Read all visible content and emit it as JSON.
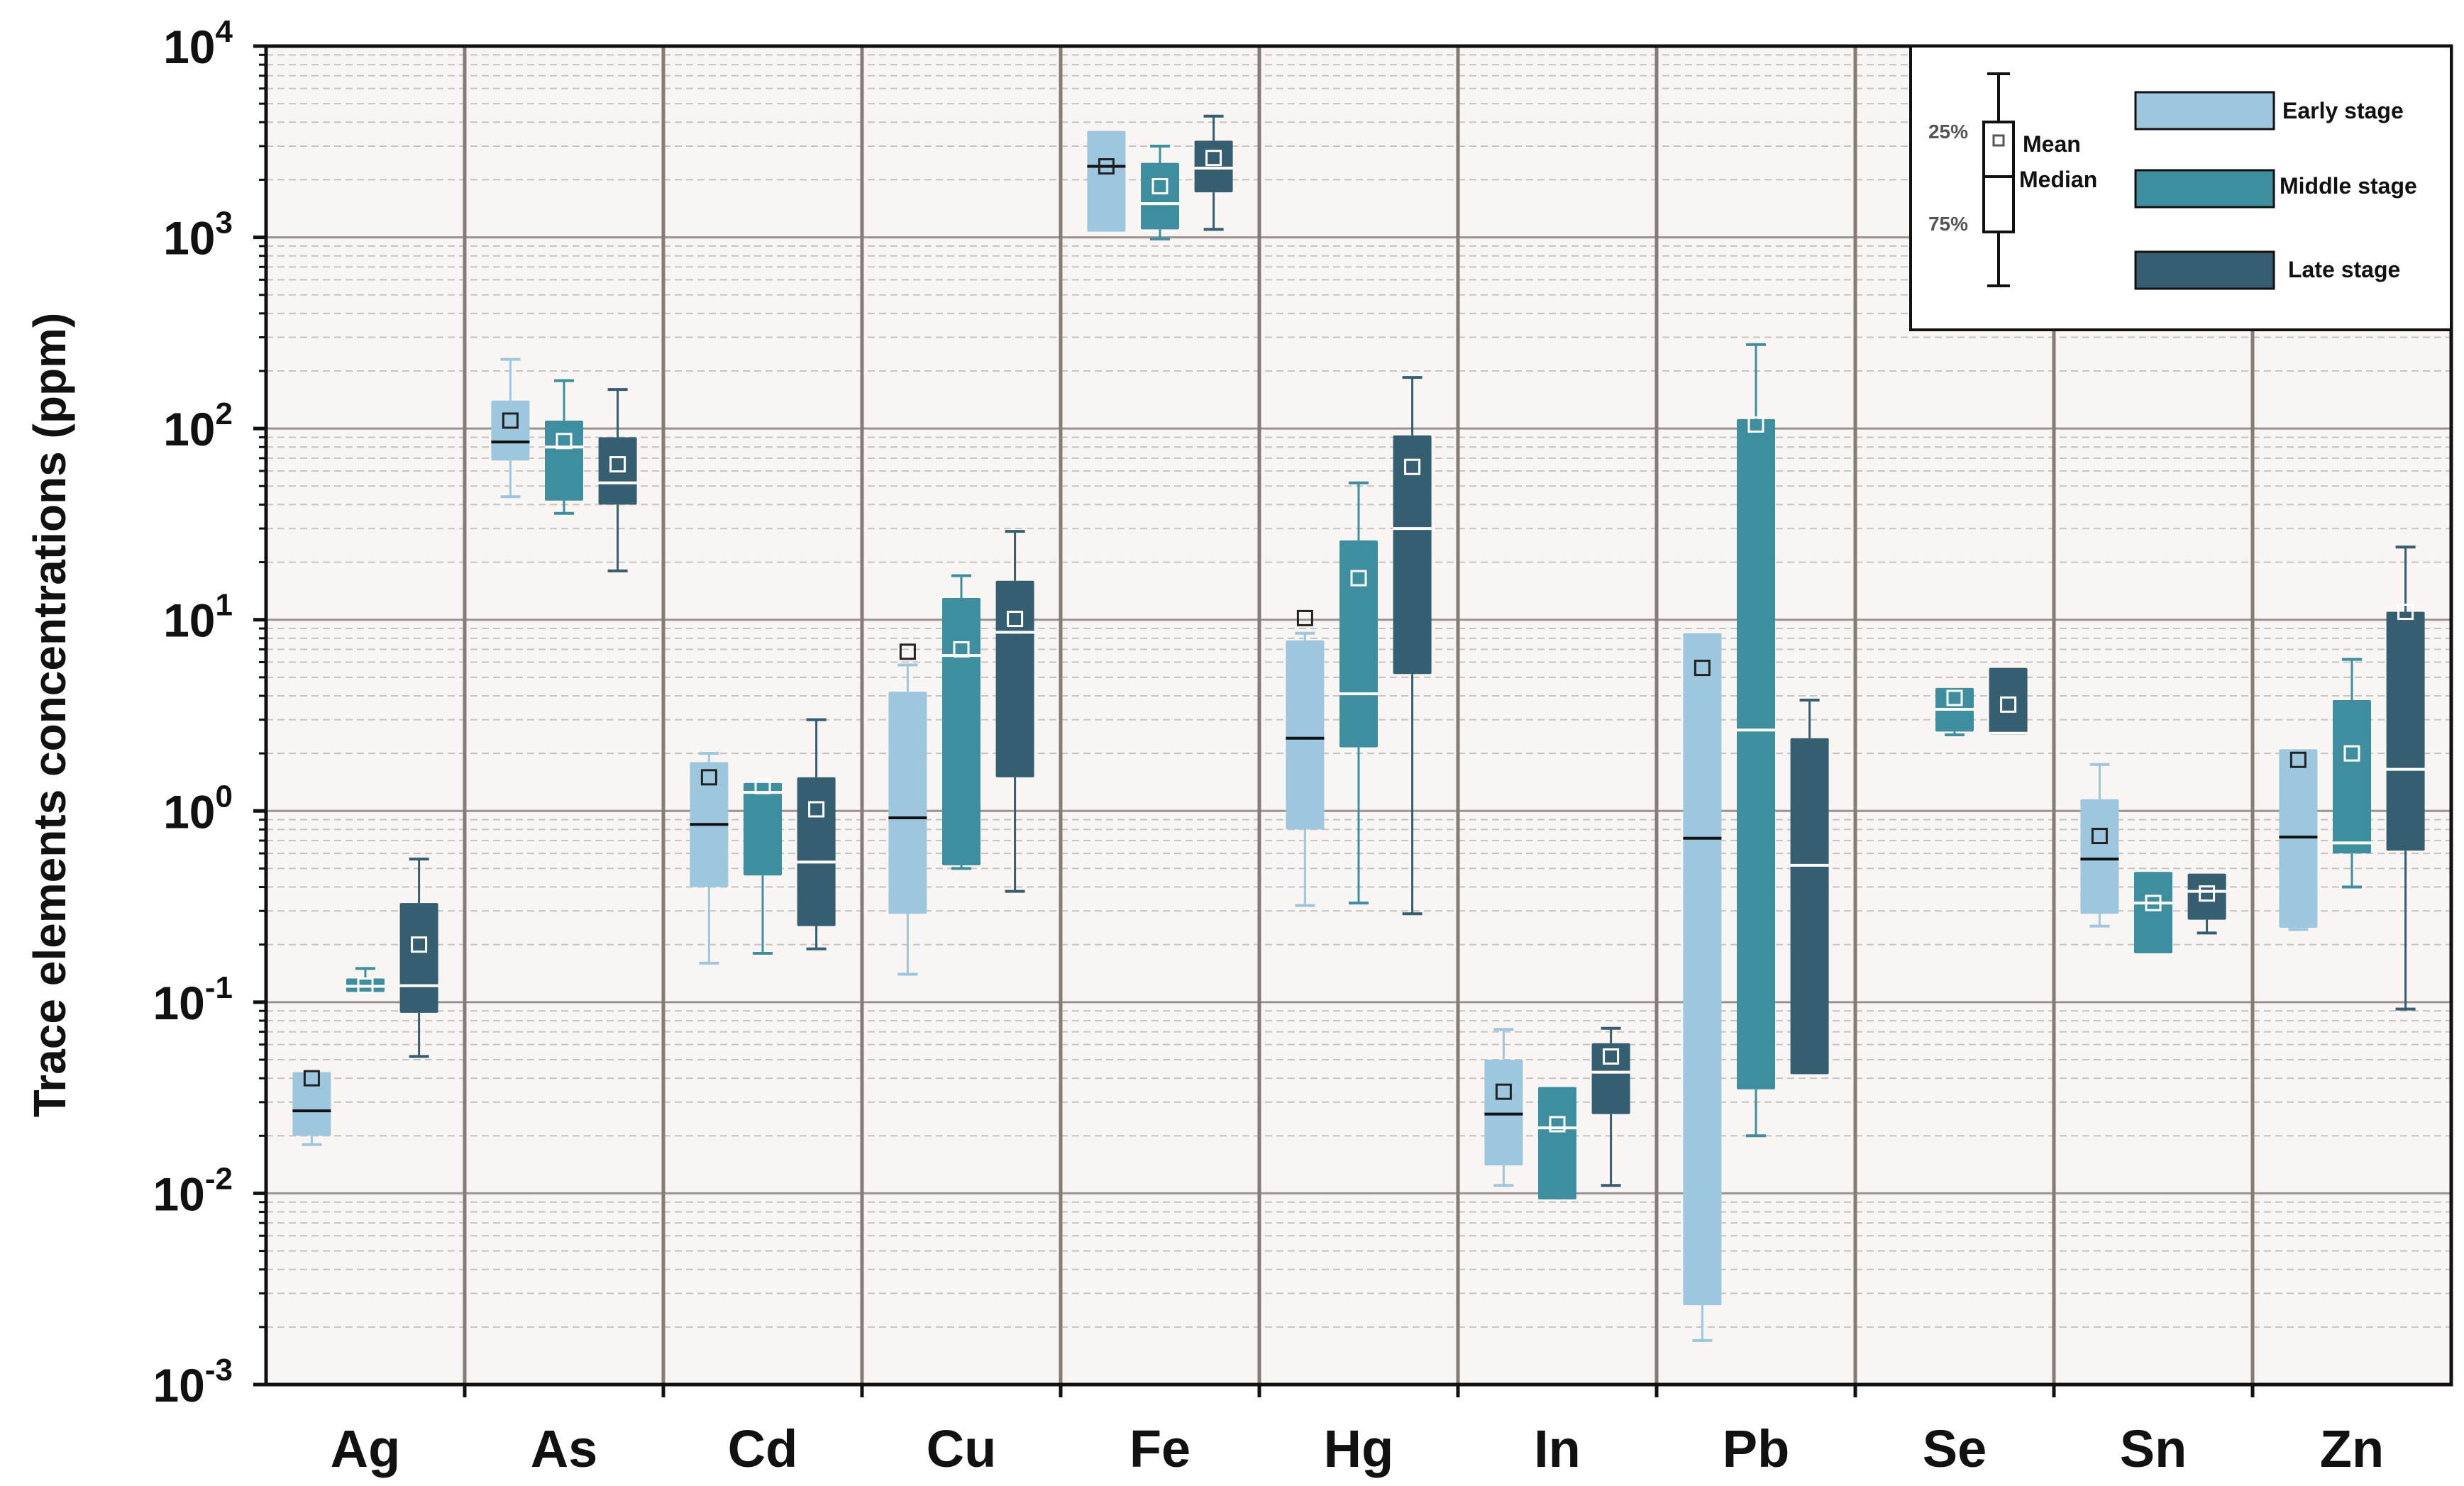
{
  "chart_data": {
    "type": "box",
    "title": "",
    "ylabel": "Trace elements concentrations (ppm)",
    "xlabel": "",
    "yscale": "log",
    "ylim": [
      0.001,
      10000
    ],
    "yticks": [
      {
        "base": "10",
        "exp": "-3",
        "value": 0.001
      },
      {
        "base": "10",
        "exp": "-2",
        "value": 0.01
      },
      {
        "base": "10",
        "exp": "-1",
        "value": 0.1
      },
      {
        "base": "10",
        "exp": "0",
        "value": 1
      },
      {
        "base": "10",
        "exp": "1",
        "value": 10
      },
      {
        "base": "10",
        "exp": "2",
        "value": 100
      },
      {
        "base": "10",
        "exp": "3",
        "value": 1000
      },
      {
        "base": "10",
        "exp": "4",
        "value": 10000
      }
    ],
    "categories": [
      "Ag",
      "As",
      "Cd",
      "Cu",
      "Fe",
      "Hg",
      "In",
      "Pb",
      "Se",
      "Sn",
      "Zn"
    ],
    "series": [
      {
        "name": "Early stage",
        "color": "#9cc7de",
        "boxes": [
          {
            "min": 0.018,
            "q1": 0.02,
            "median": 0.027,
            "q3": 0.043,
            "max": 0.043,
            "mean": 0.04
          },
          {
            "min": 44,
            "q1": 68,
            "median": 85,
            "q3": 140,
            "max": 230,
            "mean": 110
          },
          {
            "min": 0.16,
            "q1": 0.4,
            "median": 0.85,
            "q3": 1.8,
            "max": 2.0,
            "mean": 1.5
          },
          {
            "min": 0.14,
            "q1": 0.29,
            "median": 0.92,
            "q3": 4.2,
            "max": 5.8,
            "mean": 6.8
          },
          {
            "min": 1070,
            "q1": 1070,
            "median": 2350,
            "q3": 3600,
            "max": 3600,
            "mean": 2350
          },
          {
            "min": 0.32,
            "q1": 0.8,
            "median": 2.4,
            "q3": 7.8,
            "max": 8.5,
            "mean": 10.2
          },
          {
            "min": 0.011,
            "q1": 0.014,
            "median": 0.026,
            "q3": 0.05,
            "max": 0.072,
            "mean": 0.034
          },
          {
            "min": 0.0017,
            "q1": 0.0026,
            "median": 0.72,
            "q3": 8.5,
            "max": 8.5,
            "mean": 5.6
          },
          null,
          {
            "min": 0.25,
            "q1": 0.29,
            "median": 0.56,
            "q3": 1.15,
            "max": 1.75,
            "mean": 0.74
          },
          {
            "min": 0.24,
            "q1": 0.245,
            "median": 0.73,
            "q3": 2.1,
            "max": 2.1,
            "mean": 1.85
          }
        ]
      },
      {
        "name": "Middle stage",
        "color": "#3d8fa0",
        "boxes": [
          {
            "min": 0.113,
            "q1": 0.113,
            "median": 0.121,
            "q3": 0.133,
            "max": 0.15,
            "mean": 0.122
          },
          {
            "min": 36,
            "q1": 42,
            "median": 80,
            "q3": 110,
            "max": 178,
            "mean": 86
          },
          {
            "min": 0.18,
            "q1": 0.46,
            "median": 1.25,
            "q3": 1.4,
            "max": 1.4,
            "mean": 1.35
          },
          {
            "min": 0.5,
            "q1": 0.52,
            "median": 6.5,
            "q3": 13,
            "max": 17,
            "mean": 7.0
          },
          {
            "min": 980,
            "q1": 1100,
            "median": 1500,
            "q3": 2450,
            "max": 3000,
            "mean": 1850
          },
          {
            "min": 0.33,
            "q1": 2.15,
            "median": 4.1,
            "q3": 26,
            "max": 52,
            "mean": 16.5
          },
          {
            "min": 0.0093,
            "q1": 0.0093,
            "median": 0.022,
            "q3": 0.036,
            "max": 0.036,
            "mean": 0.023
          },
          {
            "min": 0.02,
            "q1": 0.035,
            "median": 2.65,
            "q3": 112,
            "max": 275,
            "mean": 105
          },
          {
            "min": 2.5,
            "q1": 2.6,
            "median": 3.4,
            "q3": 4.4,
            "max": 4.4,
            "mean": 3.9
          },
          {
            "min": 0.18,
            "q1": 0.18,
            "median": 0.33,
            "q3": 0.48,
            "max": 0.48,
            "mean": 0.33
          },
          {
            "min": 0.4,
            "q1": 0.6,
            "median": 0.68,
            "q3": 3.8,
            "max": 6.2,
            "mean": 2.0
          }
        ]
      },
      {
        "name": "Late stage",
        "color": "#355e70",
        "boxes": [
          {
            "min": 0.052,
            "q1": 0.088,
            "median": 0.122,
            "q3": 0.33,
            "max": 0.56,
            "mean": 0.2
          },
          {
            "min": 18,
            "q1": 40,
            "median": 52,
            "q3": 90,
            "max": 160,
            "mean": 65
          },
          {
            "min": 0.19,
            "q1": 0.25,
            "median": 0.54,
            "q3": 1.5,
            "max": 3.0,
            "mean": 1.02
          },
          {
            "min": 0.38,
            "q1": 1.5,
            "median": 8.6,
            "q3": 16,
            "max": 29,
            "mean": 10.1
          },
          {
            "min": 1100,
            "q1": 1720,
            "median": 2300,
            "q3": 3200,
            "max": 4300,
            "mean": 2600
          },
          {
            "min": 0.29,
            "q1": 5.2,
            "median": 30,
            "q3": 92,
            "max": 185,
            "mean": 63
          },
          {
            "min": 0.011,
            "q1": 0.026,
            "median": 0.043,
            "q3": 0.061,
            "max": 0.073,
            "mean": 0.052
          },
          {
            "min": 0.042,
            "q1": 0.042,
            "median": 0.52,
            "q3": 2.4,
            "max": 3.8,
            "mean": null
          },
          {
            "min": 2.5,
            "q1": 2.5,
            "median": 2.55,
            "q3": 5.6,
            "max": 5.6,
            "mean": 3.6
          },
          {
            "min": 0.23,
            "q1": 0.27,
            "median": 0.38,
            "q3": 0.47,
            "max": 0.47,
            "mean": 0.37
          },
          {
            "min": 0.092,
            "q1": 0.62,
            "median": 1.65,
            "q3": 11,
            "max": 24,
            "mean": 11
          }
        ]
      }
    ],
    "legend": {
      "position": "top-right",
      "key_labels": {
        "p25": "25%",
        "p75": "75%",
        "mean": "Mean",
        "median": "Median"
      },
      "entries": [
        "Early stage",
        "Middle stage",
        "Late stage"
      ]
    },
    "grid": true
  }
}
